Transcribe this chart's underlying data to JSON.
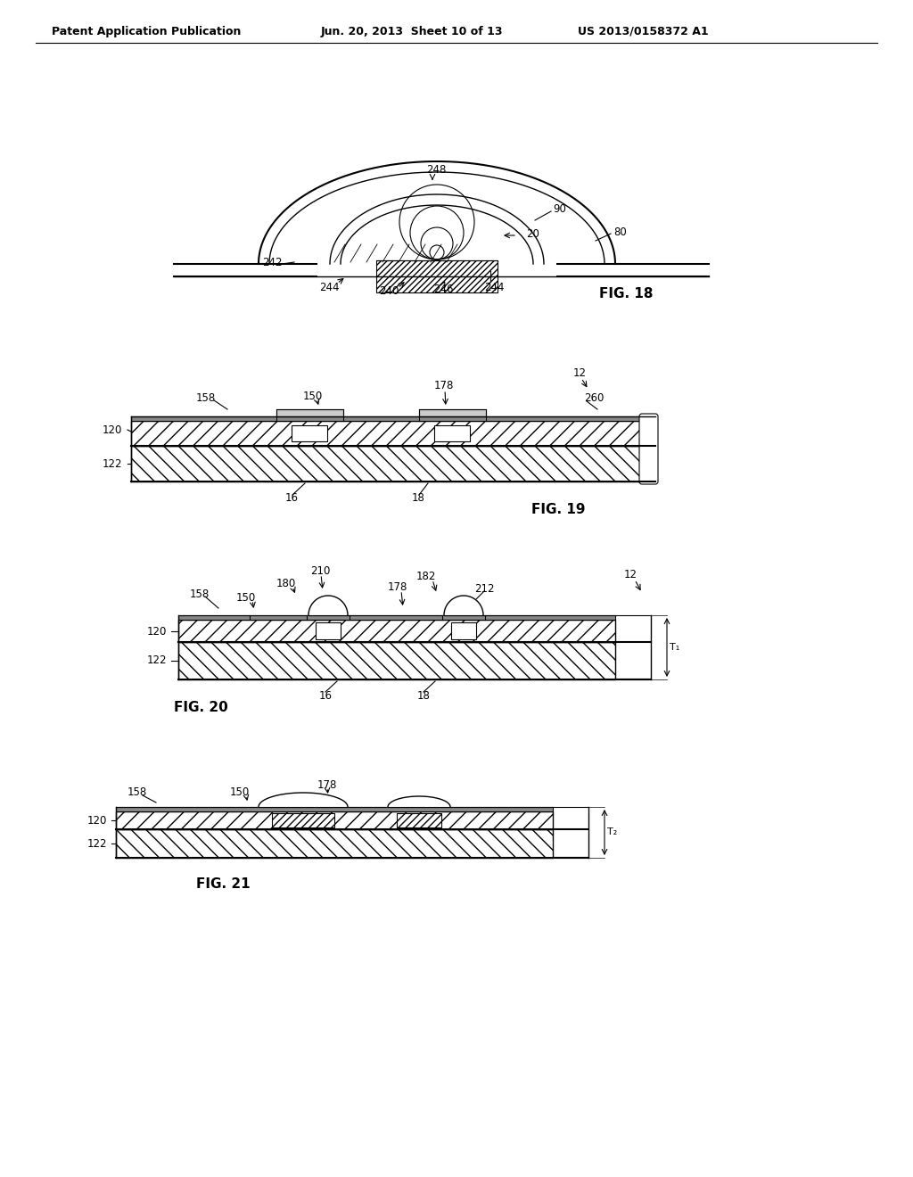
{
  "bg_color": "#ffffff",
  "header_left": "Patent Application Publication",
  "header_mid": "Jun. 20, 2013  Sheet 10 of 13",
  "header_right": "US 2013/0158372 A1",
  "fig18_label": "FIG. 18",
  "fig19_label": "FIG. 19",
  "fig20_label": "FIG. 20",
  "fig21_label": "FIG. 21",
  "line_color": "#000000",
  "gray_dark": "#555555",
  "gray_med": "#888888"
}
